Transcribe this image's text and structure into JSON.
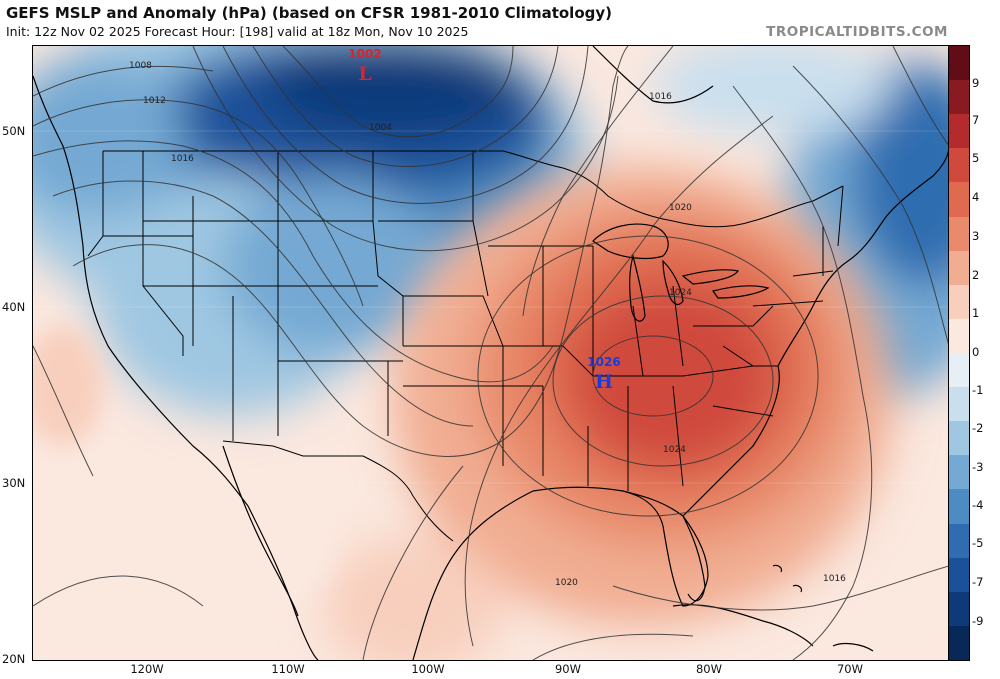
{
  "header": {
    "title": "GEFS MSLP and Anomaly (hPa) (based on CFSR 1981-2010 Climatology)",
    "subtitle": "Init: 12z Nov 02 2025   Forecast Hour: [198]   valid at 18z Mon, Nov 10 2025",
    "brand": "TROPICALTIDBITS.COM"
  },
  "axes": {
    "lat_labels": [
      "50N",
      "40N",
      "30N",
      "20N"
    ],
    "lon_labels": [
      "120W",
      "110W",
      "100W",
      "90W",
      "80W",
      "70W"
    ]
  },
  "colorbar": {
    "labels": [
      "9",
      "7",
      "5",
      "4",
      "3",
      "2",
      "1",
      "0",
      "-1",
      "-2",
      "-3",
      "-4",
      "-5",
      "-7",
      "-9"
    ],
    "colors": [
      "#610c17",
      "#8a1a22",
      "#b32b2c",
      "#cf4a3c",
      "#df6a50",
      "#e88a6b",
      "#f1ad92",
      "#f8cfbd",
      "#fbe8df",
      "#e6eff6",
      "#c9dfee",
      "#9fc7e2",
      "#74a9d3",
      "#4d8cc3",
      "#2f6db0",
      "#1b5199",
      "#0f3a7a",
      "#082858"
    ]
  },
  "systems": {
    "low": {
      "value": "1002",
      "letter": "L",
      "color": "#d6262b"
    },
    "high": {
      "value": "1026",
      "letter": "H",
      "color": "#1a3cd6"
    }
  },
  "contour_labels": [
    "1008",
    "1012",
    "1004",
    "1016",
    "1016",
    "1020",
    "1024",
    "1024",
    "1020",
    "1016"
  ]
}
